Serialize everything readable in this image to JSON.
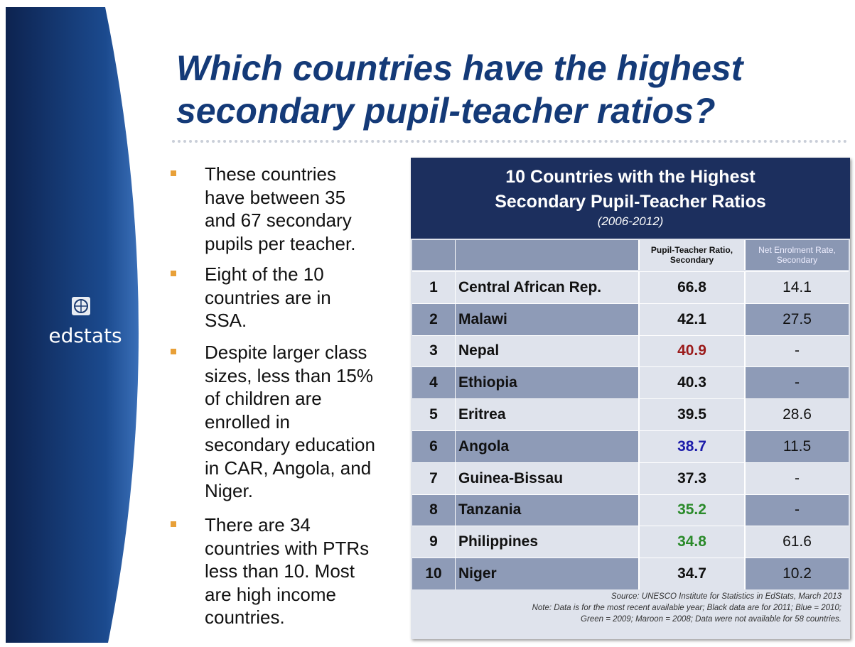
{
  "sidebar": {
    "logo_text": "edstats"
  },
  "title": [
    "Which countries have the highest",
    "secondary pupil-teacher ratios?"
  ],
  "bullets": [
    [
      "These countries",
      "have between 35",
      "and 67 secondary",
      "pupils per teacher."
    ],
    [
      "Eight of the 10",
      "countries are in",
      "SSA."
    ],
    [
      "Despite larger class",
      "sizes, less than 15%",
      "of children are",
      "enrolled in",
      "secondary education",
      "in CAR, Angola, and",
      "Niger."
    ],
    [
      "There are 34",
      "countries with PTRs",
      "less than 10. Most",
      "are high income",
      "countries."
    ]
  ],
  "table": {
    "title": [
      "10 Countries with the Highest",
      "Secondary Pupil-Teacher Ratios"
    ],
    "subtitle": "(2006-2012)",
    "columns": [
      "Pupil-Teacher Ratio, Secondary",
      "Net Enrolment Rate, Secondary"
    ],
    "rows": [
      {
        "rank": 1,
        "country": "Central African Rep.",
        "ptr": 66.8,
        "ner": 14.1,
        "ptr_color": "#111111"
      },
      {
        "rank": 2,
        "country": "Malawi",
        "ptr": 42.1,
        "ner": 27.5,
        "ptr_color": "#111111"
      },
      {
        "rank": 3,
        "country": "Nepal",
        "ptr": 40.9,
        "ner": "-",
        "ptr_color": "#9b1b1b"
      },
      {
        "rank": 4,
        "country": "Ethiopia",
        "ptr": 40.3,
        "ner": "-",
        "ptr_color": "#111111"
      },
      {
        "rank": 5,
        "country": "Eritrea",
        "ptr": 39.5,
        "ner": 28.6,
        "ptr_color": "#111111"
      },
      {
        "rank": 6,
        "country": "Angola",
        "ptr": 38.7,
        "ner": 11.5,
        "ptr_color": "#1c1caa"
      },
      {
        "rank": 7,
        "country": "Guinea-Bissau",
        "ptr": 37.3,
        "ner": "-",
        "ptr_color": "#111111"
      },
      {
        "rank": 8,
        "country": "Tanzania",
        "ptr": 35.2,
        "ner": "-",
        "ptr_color": "#2a8a2a"
      },
      {
        "rank": 9,
        "country": "Philippines",
        "ptr": 34.8,
        "ner": 61.6,
        "ptr_color": "#2a8a2a"
      },
      {
        "rank": 10,
        "country": "Niger",
        "ptr": 34.7,
        "ner": 10.2,
        "ptr_color": "#111111"
      }
    ],
    "source": "Source: UNESCO Institute for Statistics in EdStats, March 2013",
    "note": [
      "Note: Data is for the most recent available year; Black data are for 2011; Blue = 2010;",
      "Green = 2009; Maroon = 2008; Data were not available for 58 countries."
    ]
  }
}
